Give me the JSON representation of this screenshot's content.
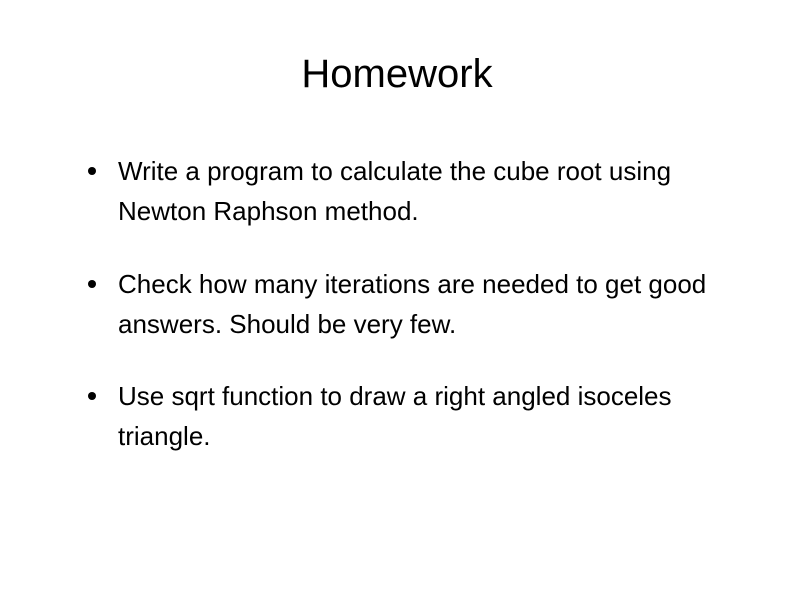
{
  "slide": {
    "title": "Homework",
    "title_fontsize": 40,
    "body_fontsize": 26,
    "background_color": "#ffffff",
    "text_color": "#000000",
    "bullet_color": "#000000",
    "bullets": [
      {
        "text": "Write a program to calculate the cube root using Newton Raphson method."
      },
      {
        "text": "Check how many iterations are needed to get good answers.  Should be very few."
      },
      {
        "text": " Use sqrt function to draw a right angled isoceles triangle."
      }
    ]
  }
}
